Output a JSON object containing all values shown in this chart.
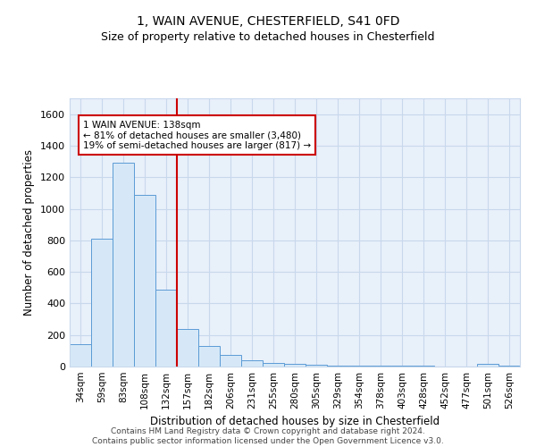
{
  "title1": "1, WAIN AVENUE, CHESTERFIELD, S41 0FD",
  "title2": "Size of property relative to detached houses in Chesterfield",
  "xlabel": "Distribution of detached houses by size in Chesterfield",
  "ylabel": "Number of detached properties",
  "categories": [
    "34sqm",
    "59sqm",
    "83sqm",
    "108sqm",
    "132sqm",
    "157sqm",
    "182sqm",
    "206sqm",
    "231sqm",
    "255sqm",
    "280sqm",
    "305sqm",
    "329sqm",
    "354sqm",
    "378sqm",
    "403sqm",
    "428sqm",
    "452sqm",
    "477sqm",
    "501sqm",
    "526sqm"
  ],
  "values": [
    140,
    810,
    1290,
    1090,
    490,
    240,
    130,
    75,
    40,
    25,
    15,
    10,
    8,
    6,
    5,
    4,
    3,
    2,
    2,
    15,
    5
  ],
  "bar_color": "#d6e8f7",
  "bar_edge_color": "#5b9bd5",
  "vline_x": 4.5,
  "vline_color": "#cc0000",
  "annotation_line1": "1 WAIN AVENUE: 138sqm",
  "annotation_line2": "← 81% of detached houses are smaller (3,480)",
  "annotation_line3": "19% of semi-detached houses are larger (817) →",
  "ylim": [
    0,
    1700
  ],
  "yticks": [
    0,
    200,
    400,
    600,
    800,
    1000,
    1200,
    1400,
    1600
  ],
  "grid_color": "#c8d8ec",
  "bg_color": "#e8f0fa",
  "title_fontsize": 10,
  "subtitle_fontsize": 9,
  "footnote": "Contains HM Land Registry data © Crown copyright and database right 2024.\nContains public sector information licensed under the Open Government Licence v3.0."
}
